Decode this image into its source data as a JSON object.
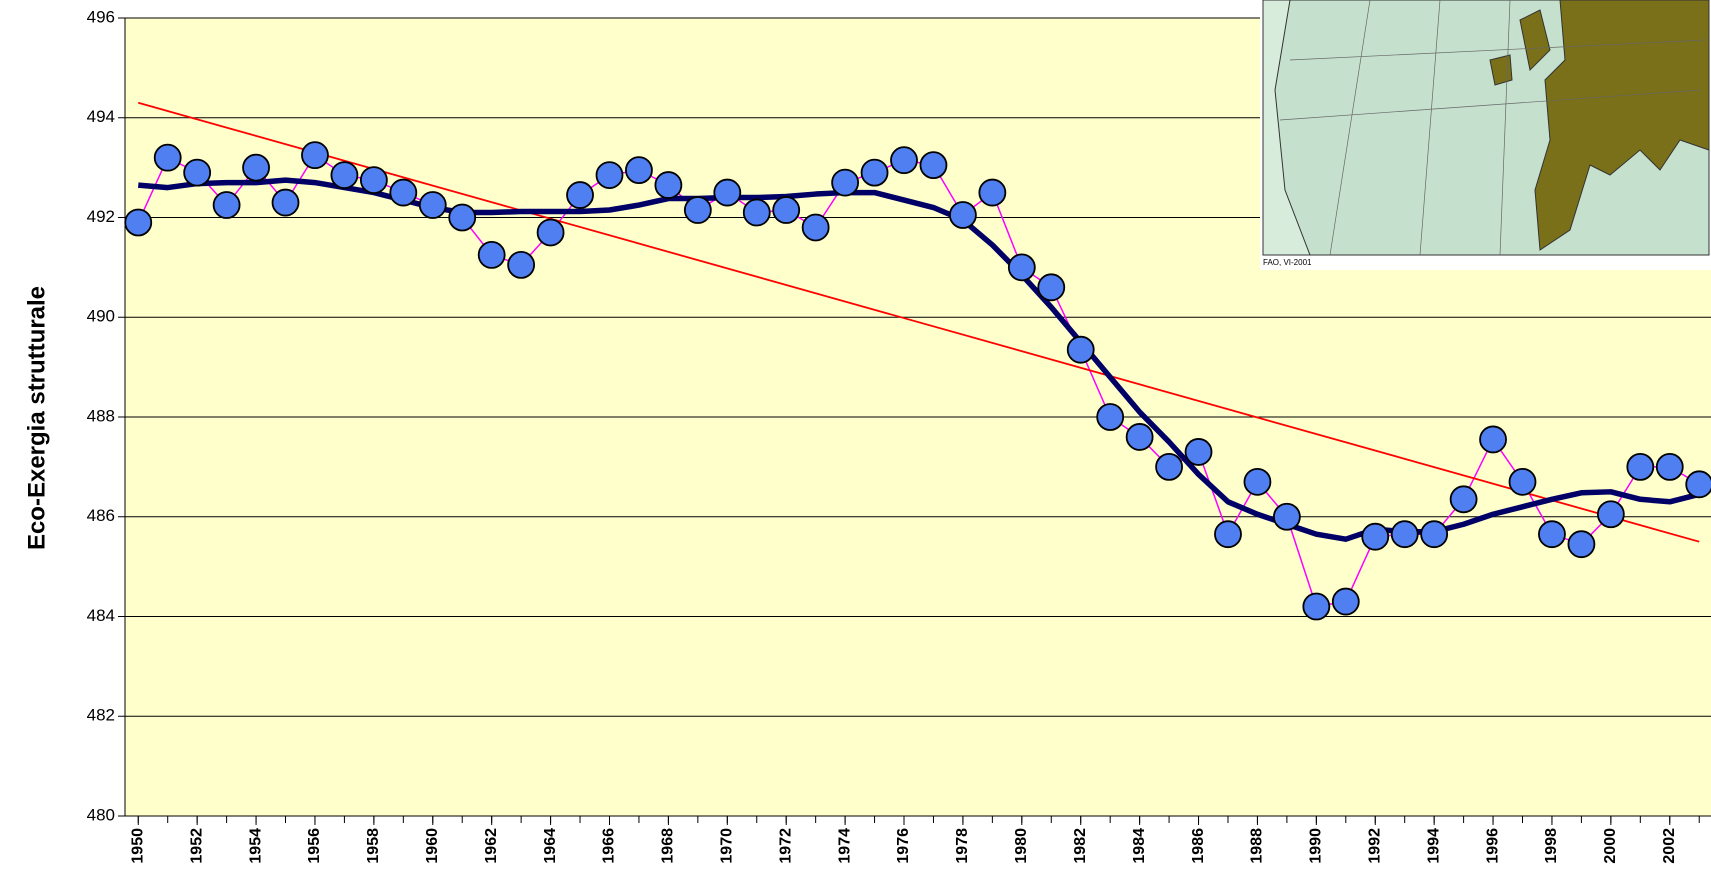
{
  "chart_data": {
    "type": "line",
    "y_label": "Eco-Exergia strutturale",
    "x": [
      1950,
      1951,
      1952,
      1953,
      1954,
      1955,
      1956,
      1957,
      1958,
      1959,
      1960,
      1961,
      1962,
      1963,
      1964,
      1965,
      1966,
      1967,
      1968,
      1969,
      1970,
      1971,
      1972,
      1973,
      1974,
      1975,
      1976,
      1977,
      1978,
      1979,
      1980,
      1981,
      1982,
      1983,
      1984,
      1985,
      1986,
      1987,
      1988,
      1989,
      1990,
      1991,
      1992,
      1993,
      1994,
      1995,
      1996,
      1997,
      1998,
      1999,
      2000,
      2001,
      2002,
      2003
    ],
    "series": [
      {
        "color": "#ff00ff",
        "marker_color": "#4f7ff0",
        "values": [
          491.9,
          493.2,
          492.9,
          492.25,
          493.0,
          492.3,
          493.25,
          492.85,
          492.75,
          492.5,
          492.25,
          492.0,
          491.25,
          491.05,
          491.7,
          492.45,
          492.85,
          492.95,
          492.65,
          492.15,
          492.5,
          492.1,
          492.15,
          491.8,
          492.7,
          492.9,
          493.15,
          493.05,
          492.05,
          492.5,
          491.0,
          490.6,
          489.35,
          488.0,
          487.6,
          487.0,
          487.3,
          485.65,
          486.7,
          486.0,
          484.2,
          484.3,
          485.6,
          485.65,
          485.65,
          486.35,
          487.55,
          486.7,
          485.65,
          485.45,
          486.05,
          487.0,
          487.0,
          486.65
        ]
      },
      {
        "color": "#000066",
        "values": [
          492.65,
          492.6,
          492.68,
          492.7,
          492.7,
          492.75,
          492.7,
          492.6,
          492.5,
          492.35,
          492.2,
          492.1,
          492.1,
          492.12,
          492.12,
          492.12,
          492.15,
          492.25,
          492.38,
          492.38,
          492.4,
          492.4,
          492.42,
          492.47,
          492.5,
          492.5,
          492.35,
          492.2,
          491.95,
          491.45,
          490.85,
          490.2,
          489.5,
          488.8,
          488.1,
          487.5,
          486.85,
          486.3,
          486.05,
          485.85,
          485.65,
          485.55,
          485.75,
          485.7,
          485.7,
          485.85,
          486.05,
          486.2,
          486.35,
          486.48,
          486.5,
          486.35,
          486.3,
          486.45
        ]
      }
    ],
    "trend": {
      "color": "#ff0000",
      "x": [
        1950,
        2003
      ],
      "values": [
        494.3,
        485.5
      ]
    },
    "xlim": [
      1949.55,
      2003.4
    ],
    "xticks": [
      1950,
      1952,
      1954,
      1956,
      1958,
      1960,
      1962,
      1964,
      1966,
      1968,
      1970,
      1972,
      1974,
      1976,
      1978,
      1980,
      1982,
      1984,
      1986,
      1988,
      1990,
      1992,
      1994,
      1996,
      1998,
      2000,
      2002
    ],
    "ylim": [
      480,
      496
    ],
    "yticks": [
      480,
      482,
      484,
      486,
      488,
      490,
      492,
      494,
      496
    ],
    "grid": true,
    "plot_background": "#ffffcc"
  },
  "map_inset": {
    "credit": "FAO, VI-2001"
  }
}
